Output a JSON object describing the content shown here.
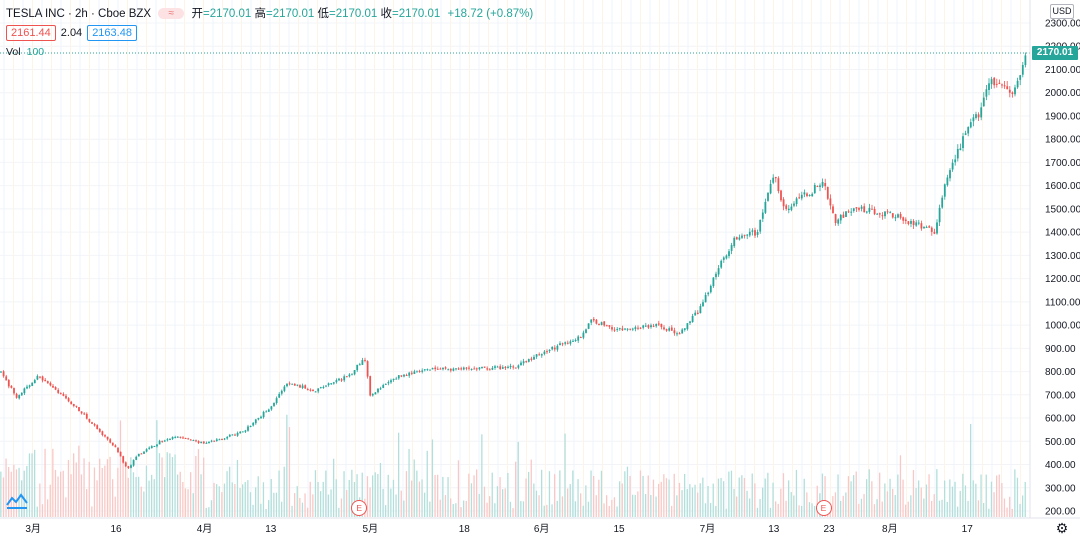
{
  "header": {
    "symbol": "TESLA INC · 2h · Cboe BZX",
    "toggle_glyph": "≈",
    "open_label": "开",
    "open_value": "=2170.01",
    "high_label": "高",
    "high_value": "=2170.01",
    "low_label": "低",
    "low_value": "=2170.01",
    "close_label": "收",
    "close_value": "=2170.01",
    "change": "+18.72 (+0.87%)"
  },
  "quote": {
    "bid": "2161.44",
    "spread": "2.04",
    "ask": "2163.48"
  },
  "volume_indicator": {
    "label": "Vol",
    "value": "100"
  },
  "price_scale": {
    "currency": "USD",
    "last_price": "2170.01",
    "ticks": [
      "2300.00",
      "2200.00",
      "2100.00",
      "2000.00",
      "1900.00",
      "1800.00",
      "1700.00",
      "1600.00",
      "1500.00",
      "1400.00",
      "1300.00",
      "1200.00",
      "1100.00",
      "1000.00",
      "900.00",
      "800.00",
      "700.00",
      "600.00",
      "500.00",
      "400.00",
      "300.00",
      "200.00"
    ]
  },
  "time_scale": {
    "labels": [
      {
        "text": "3月",
        "date": "2020-03-01"
      },
      {
        "text": "16",
        "date": "2020-03-16"
      },
      {
        "text": "4月",
        "date": "2020-04-01"
      },
      {
        "text": "13",
        "date": "2020-04-13"
      },
      {
        "text": "5月",
        "date": "2020-05-01"
      },
      {
        "text": "18",
        "date": "2020-05-18"
      },
      {
        "text": "6月",
        "date": "2020-06-01"
      },
      {
        "text": "15",
        "date": "2020-06-15"
      },
      {
        "text": "7月",
        "date": "2020-07-01"
      },
      {
        "text": "13",
        "date": "2020-07-13"
      },
      {
        "text": "23",
        "date": "2020-07-23"
      },
      {
        "text": "8月",
        "date": "2020-08-03"
      },
      {
        "text": "17",
        "date": "2020-08-17"
      }
    ]
  },
  "earnings_markers": [
    {
      "label": "E",
      "date": "2020-04-29"
    },
    {
      "label": "E",
      "date": "2020-07-22"
    }
  ],
  "colors": {
    "up": "#26a69a",
    "down": "#ef5350",
    "last_price_line": "#26a69a",
    "grid": "#f0f3fa"
  },
  "chart_data": {
    "type": "candlestick",
    "price_unit": "USD",
    "ylim": [
      200,
      2300
    ],
    "x_range": [
      "2020-02-24",
      "2020-08-28"
    ],
    "series": [
      {
        "name": "",
        "key_points": [
          {
            "x": "2020-02-24",
            "y": 800
          },
          {
            "x": "2020-02-27",
            "y": 690
          },
          {
            "x": "2020-03-02",
            "y": 780
          },
          {
            "x": "2020-03-06",
            "y": 700
          },
          {
            "x": "2020-03-10",
            "y": 620
          },
          {
            "x": "2020-03-13",
            "y": 540
          },
          {
            "x": "2020-03-16",
            "y": 470
          },
          {
            "x": "2020-03-18",
            "y": 380
          },
          {
            "x": "2020-03-20",
            "y": 440
          },
          {
            "x": "2020-03-24",
            "y": 500
          },
          {
            "x": "2020-03-27",
            "y": 520
          },
          {
            "x": "2020-04-01",
            "y": 490
          },
          {
            "x": "2020-04-08",
            "y": 540
          },
          {
            "x": "2020-04-13",
            "y": 650
          },
          {
            "x": "2020-04-16",
            "y": 750
          },
          {
            "x": "2020-04-21",
            "y": 720
          },
          {
            "x": "2020-04-27",
            "y": 780
          },
          {
            "x": "2020-04-30",
            "y": 860
          },
          {
            "x": "2020-05-01",
            "y": 700
          },
          {
            "x": "2020-05-06",
            "y": 780
          },
          {
            "x": "2020-05-12",
            "y": 810
          },
          {
            "x": "2020-05-18",
            "y": 810
          },
          {
            "x": "2020-05-27",
            "y": 820
          },
          {
            "x": "2020-06-01",
            "y": 880
          },
          {
            "x": "2020-06-08",
            "y": 950
          },
          {
            "x": "2020-06-10",
            "y": 1020
          },
          {
            "x": "2020-06-15",
            "y": 980
          },
          {
            "x": "2020-06-22",
            "y": 1000
          },
          {
            "x": "2020-06-26",
            "y": 960
          },
          {
            "x": "2020-06-30",
            "y": 1080
          },
          {
            "x": "2020-07-02",
            "y": 1200
          },
          {
            "x": "2020-07-06",
            "y": 1380
          },
          {
            "x": "2020-07-10",
            "y": 1400
          },
          {
            "x": "2020-07-13",
            "y": 1650
          },
          {
            "x": "2020-07-15",
            "y": 1500
          },
          {
            "x": "2020-07-20",
            "y": 1580
          },
          {
            "x": "2020-07-22",
            "y": 1620
          },
          {
            "x": "2020-07-24",
            "y": 1450
          },
          {
            "x": "2020-07-28",
            "y": 1500
          },
          {
            "x": "2020-08-03",
            "y": 1480
          },
          {
            "x": "2020-08-07",
            "y": 1440
          },
          {
            "x": "2020-08-11",
            "y": 1400
          },
          {
            "x": "2020-08-13",
            "y": 1600
          },
          {
            "x": "2020-08-17",
            "y": 1850
          },
          {
            "x": "2020-08-19",
            "y": 1900
          },
          {
            "x": "2020-08-21",
            "y": 2050
          },
          {
            "x": "2020-08-25",
            "y": 2000
          },
          {
            "x": "2020-08-28",
            "y": 2170
          }
        ]
      }
    ]
  }
}
